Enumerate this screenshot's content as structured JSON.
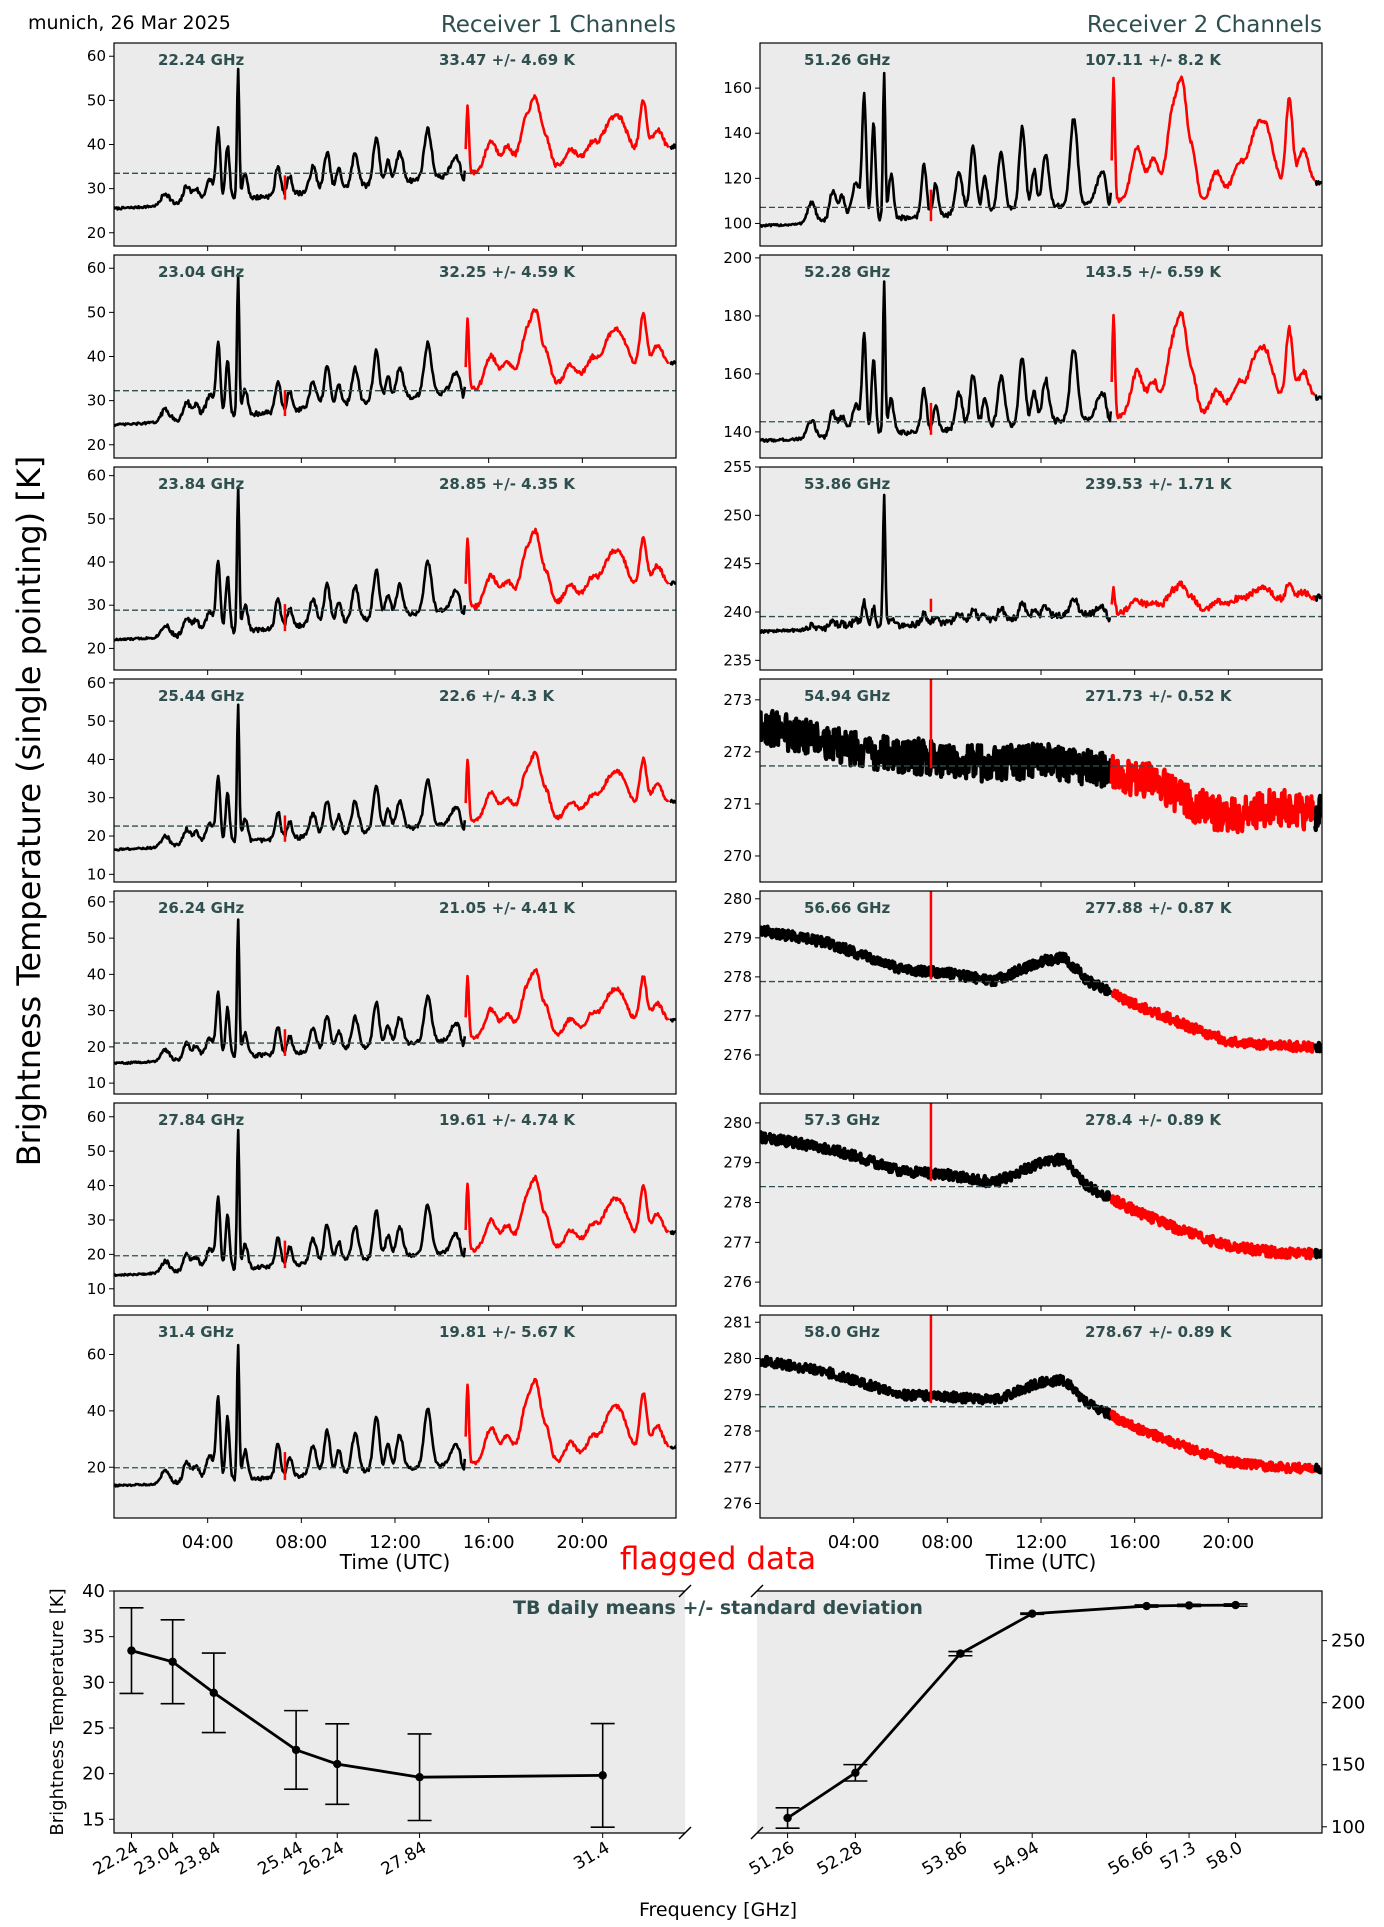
{
  "header": {
    "location_date": "munich, 26 Mar 2025",
    "receiver1_title": "Receiver 1 Channels",
    "receiver2_title": "Receiver 2 Channels",
    "ylabel": "Brightness Temperature (single pointing) [K]",
    "flagged_label": "flagged data"
  },
  "colors": {
    "panel_bg": "#ebebeb",
    "text_dark": "#2f4f4f",
    "data": "#000000",
    "flagged": "#ff0000",
    "mean_line": "#2f4f4f"
  },
  "chart_data": [
    {
      "type": "line",
      "receiver": 1,
      "xlabel": "Time (UTC)",
      "x_ticks": [
        "04:00",
        "08:00",
        "12:00",
        "16:00",
        "20:00"
      ],
      "x_unit": "hours UTC",
      "xlim": [
        0,
        24
      ],
      "flagged_interval_hours": [
        15.0,
        23.7
      ],
      "channels": [
        {
          "freq_label": "22.24 GHz",
          "stat_label": "33.47 +/- 4.69 K",
          "mean": 33.47,
          "ylim": [
            17,
            63
          ],
          "yticks": [
            20,
            30,
            40,
            50,
            60
          ],
          "base_start": 25.5,
          "base_end": 39.5,
          "spike_scale": 1.0,
          "noise": 0.5,
          "main_spike": 55.5
        },
        {
          "freq_label": "23.04 GHz",
          "stat_label": "32.25 +/- 4.59 K",
          "mean": 32.25,
          "ylim": [
            17,
            63
          ],
          "yticks": [
            20,
            30,
            40,
            50,
            60
          ],
          "base_start": 24.5,
          "base_end": 38.5,
          "spike_scale": 1.0,
          "noise": 0.5,
          "main_spike": 56.0
        },
        {
          "freq_label": "23.84 GHz",
          "stat_label": "28.85 +/- 4.35 K",
          "mean": 28.85,
          "ylim": [
            15,
            62
          ],
          "yticks": [
            20,
            30,
            40,
            50,
            60
          ],
          "base_start": 22.0,
          "base_end": 35.0,
          "spike_scale": 0.95,
          "noise": 0.5,
          "main_spike": 55.0
        },
        {
          "freq_label": "25.44 GHz",
          "stat_label": "22.6 +/- 4.3 K",
          "mean": 22.6,
          "ylim": [
            8,
            61
          ],
          "yticks": [
            10,
            20,
            30,
            40,
            50,
            60
          ],
          "base_start": 16.5,
          "base_end": 29.0,
          "spike_scale": 0.9,
          "noise": 0.5,
          "main_spike": 52.0
        },
        {
          "freq_label": "26.24 GHz",
          "stat_label": "21.05 +/- 4.41 K",
          "mean": 21.05,
          "ylim": [
            7,
            63
          ],
          "yticks": [
            10,
            20,
            30,
            40,
            50,
            60
          ],
          "base_start": 15.5,
          "base_end": 27.5,
          "spike_scale": 0.9,
          "noise": 0.5,
          "main_spike": 53.0
        },
        {
          "freq_label": "27.84 GHz",
          "stat_label": "19.61 +/- 4.74 K",
          "mean": 19.61,
          "ylim": [
            5,
            64
          ],
          "yticks": [
            10,
            20,
            30,
            40,
            50,
            60
          ],
          "base_start": 14.0,
          "base_end": 26.5,
          "spike_scale": 0.95,
          "noise": 0.5,
          "main_spike": 54.0
        },
        {
          "freq_label": "31.4 GHz",
          "stat_label": "19.81 +/- 5.67 K",
          "mean": 19.81,
          "ylim": [
            2,
            74
          ],
          "yticks": [
            20,
            40,
            60
          ],
          "base_start": 13.5,
          "base_end": 27.0,
          "spike_scale": 1.15,
          "noise": 0.6,
          "main_spike": 61.0
        }
      ]
    },
    {
      "type": "line",
      "receiver": 2,
      "xlabel": "Time (UTC)",
      "x_ticks": [
        "04:00",
        "08:00",
        "12:00",
        "16:00",
        "20:00"
      ],
      "x_unit": "hours UTC",
      "xlim": [
        0,
        24
      ],
      "flagged_interval_hours": [
        15.0,
        23.7
      ],
      "channels": [
        {
          "freq_label": "51.26 GHz",
          "stat_label": "107.11 +/- 8.2 K",
          "mean": 107.11,
          "ylim": [
            90,
            180
          ],
          "yticks": [
            100,
            120,
            140,
            160
          ],
          "kind": "spiky",
          "base_start": 99.0,
          "base_end": 118.0,
          "spike_scale": 1.6,
          "noise": 1.0,
          "main_spike": 163.0
        },
        {
          "freq_label": "52.28 GHz",
          "stat_label": "143.5 +/- 6.59 K",
          "mean": 143.5,
          "ylim": [
            131,
            201
          ],
          "yticks": [
            140,
            160,
            180,
            200
          ],
          "kind": "spiky",
          "base_start": 137.0,
          "base_end": 152.0,
          "spike_scale": 1.25,
          "noise": 0.9,
          "main_spike": 189.0
        },
        {
          "freq_label": "53.86 GHz",
          "stat_label": "239.53 +/- 1.71 K",
          "mean": 239.53,
          "ylim": [
            234,
            255
          ],
          "yticks": [
            235,
            240,
            245,
            250,
            255
          ],
          "kind": "spiky",
          "base_start": 238.0,
          "base_end": 241.5,
          "spike_scale": 0.35,
          "noise": 0.3,
          "main_spike": 251.5
        },
        {
          "freq_label": "54.94 GHz",
          "stat_label": "271.73 +/- 0.52 K",
          "mean": 271.73,
          "ylim": [
            269.5,
            273.4
          ],
          "yticks": [
            270,
            271,
            272,
            273
          ],
          "kind": "noisy",
          "points": [
            [
              0,
              272.5
            ],
            [
              4,
              272.05
            ],
            [
              8,
              271.85
            ],
            [
              10,
              271.75
            ],
            [
              12,
              271.85
            ],
            [
              14,
              271.7
            ],
            [
              15,
              271.6
            ],
            [
              17,
              271.4
            ],
            [
              18.5,
              271.0
            ],
            [
              20,
              270.75
            ],
            [
              22,
              270.95
            ],
            [
              24,
              270.8
            ]
          ],
          "noise": 0.35
        },
        {
          "freq_label": "56.66 GHz",
          "stat_label": "277.88 +/- 0.87 K",
          "mean": 277.88,
          "ylim": [
            275,
            280.2
          ],
          "yticks": [
            276,
            277,
            278,
            279,
            280
          ],
          "kind": "noisy",
          "points": [
            [
              0,
              279.2
            ],
            [
              3,
              278.85
            ],
            [
              6,
              278.2
            ],
            [
              8,
              278.1
            ],
            [
              10,
              277.9
            ],
            [
              12,
              278.4
            ],
            [
              13,
              278.5
            ],
            [
              14,
              277.9
            ],
            [
              16,
              277.3
            ],
            [
              18,
              276.8
            ],
            [
              20,
              276.35
            ],
            [
              22,
              276.25
            ],
            [
              24,
              276.2
            ]
          ],
          "noise": 0.13
        },
        {
          "freq_label": "57.3 GHz",
          "stat_label": "278.4 +/- 0.89 K",
          "mean": 278.4,
          "ylim": [
            275.4,
            280.5
          ],
          "yticks": [
            276,
            277,
            278,
            279,
            280
          ],
          "kind": "noisy",
          "points": [
            [
              0,
              279.65
            ],
            [
              3,
              279.35
            ],
            [
              6,
              278.8
            ],
            [
              8,
              278.7
            ],
            [
              10,
              278.5
            ],
            [
              12,
              279.0
            ],
            [
              13,
              279.1
            ],
            [
              14,
              278.4
            ],
            [
              16,
              277.8
            ],
            [
              18,
              277.3
            ],
            [
              20,
              276.9
            ],
            [
              22,
              276.75
            ],
            [
              24,
              276.7
            ]
          ],
          "noise": 0.13
        },
        {
          "freq_label": "58.0 GHz",
          "stat_label": "278.67 +/- 0.89 K",
          "mean": 278.67,
          "ylim": [
            275.6,
            281.2
          ],
          "yticks": [
            276,
            277,
            278,
            279,
            280,
            281
          ],
          "kind": "noisy",
          "points": [
            [
              0,
              279.95
            ],
            [
              3,
              279.6
            ],
            [
              6,
              279.0
            ],
            [
              8,
              278.95
            ],
            [
              10,
              278.85
            ],
            [
              12,
              279.35
            ],
            [
              13,
              279.4
            ],
            [
              14,
              278.75
            ],
            [
              16,
              278.1
            ],
            [
              18,
              277.6
            ],
            [
              20,
              277.15
            ],
            [
              22,
              277.0
            ],
            [
              24,
              276.95
            ]
          ],
          "noise": 0.13
        }
      ]
    },
    {
      "type": "line",
      "title": "TB daily means +/- standard deviation",
      "xlabel": "Frequency [GHz]",
      "ylabel": "Brightness Temperature [K]",
      "left_axis": {
        "ylim": [
          13.5,
          40
        ],
        "yticks": [
          15,
          20,
          25,
          30,
          35,
          40
        ],
        "xlim": [
          21.9,
          33.0
        ]
      },
      "right_axis": {
        "ylim": [
          95,
          290
        ],
        "yticks": [
          100,
          150,
          200,
          250
        ],
        "xlim": [
          50.8,
          59.3
        ]
      },
      "categories": [
        "22.24",
        "23.04",
        "23.84",
        "25.44",
        "26.24",
        "27.84",
        "31.4",
        "51.26",
        "52.28",
        "53.86",
        "54.94",
        "56.66",
        "57.3",
        "58.0"
      ],
      "series": [
        {
          "axis": "left",
          "x": [
            22.24,
            23.04,
            23.84,
            25.44,
            26.24,
            27.84,
            31.4
          ],
          "values": [
            33.47,
            32.25,
            28.85,
            22.6,
            21.05,
            19.61,
            19.81
          ],
          "errors": [
            4.69,
            4.59,
            4.35,
            4.3,
            4.41,
            4.74,
            5.67
          ]
        },
        {
          "axis": "right",
          "x": [
            51.26,
            52.28,
            53.86,
            54.94,
            56.66,
            57.3,
            58.0
          ],
          "values": [
            107.11,
            143.5,
            239.53,
            271.73,
            277.88,
            278.4,
            278.67
          ],
          "errors": [
            8.2,
            6.59,
            1.71,
            0.52,
            0.87,
            0.89,
            0.89
          ]
        }
      ]
    }
  ]
}
